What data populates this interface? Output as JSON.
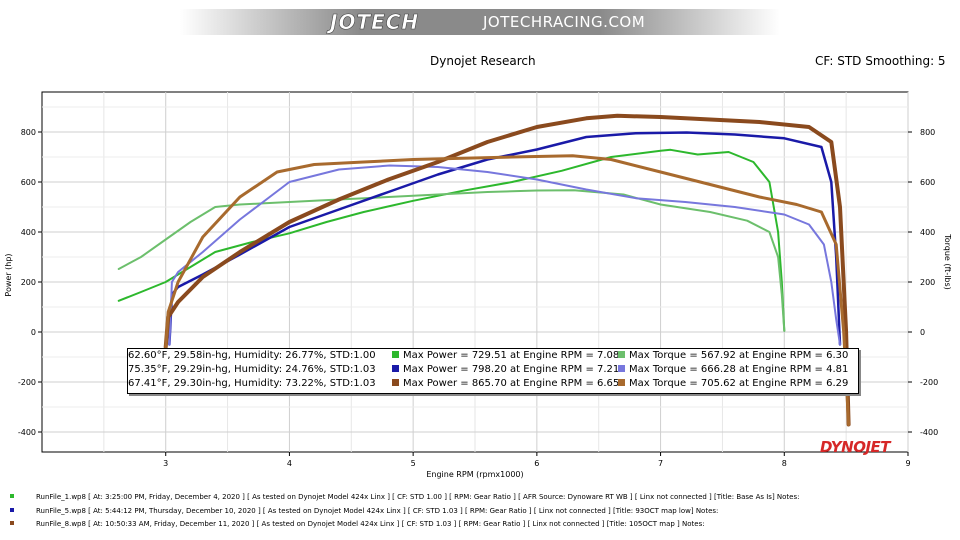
{
  "banner": {
    "logo": "JOTECH",
    "site": "JOTECHRACING.COM"
  },
  "header": {
    "title": "Dynojet Research",
    "cf_label": "CF: STD Smoothing: 5"
  },
  "brand": "DYNOJET",
  "colors": {
    "run1_power": "#2db82d",
    "run1_torque": "#6cbf6c",
    "run5_power": "#1a1aa8",
    "run5_torque": "#7777dd",
    "run8_power": "#8a4a1e",
    "run8_torque": "#a86a2e"
  },
  "chart_data": {
    "type": "line",
    "title": "Dynojet Research",
    "xlabel": "Engine RPM (rpmx1000)",
    "ylabel": "Power (hp)",
    "y2label": "Torque (ft-lbs)",
    "xlim": [
      2.0,
      9.0
    ],
    "ylim": [
      -480,
      960
    ],
    "xticks": [
      "3",
      "4",
      "5",
      "6",
      "7",
      "8",
      "9"
    ],
    "yticks": [
      "800",
      "600",
      "400",
      "200",
      "0",
      "-200",
      "-400"
    ],
    "y2ticks": [
      "800",
      "600",
      "400",
      "200",
      "0",
      "-200",
      "-400"
    ],
    "grid": true,
    "series": [
      {
        "name": "Max Power = 729.51 at Engine RPM = 7.08",
        "color": "#2db82d",
        "width": 2,
        "x": [
          2.62,
          2.8,
          3.0,
          3.2,
          3.4,
          3.7,
          4.0,
          4.3,
          4.6,
          5.0,
          5.4,
          5.8,
          6.2,
          6.6,
          7.0,
          7.08,
          7.3,
          7.55,
          7.75,
          7.88,
          7.95,
          7.98,
          8.0
        ],
        "y": [
          125,
          160,
          200,
          260,
          320,
          360,
          395,
          440,
          480,
          525,
          565,
          600,
          645,
          700,
          725,
          729,
          710,
          720,
          680,
          600,
          400,
          200,
          5
        ]
      },
      {
        "name": "Max Torque = 567.92 at Engine RPM = 6.30",
        "color": "#6cbf6c",
        "width": 2,
        "x": [
          2.62,
          2.8,
          3.0,
          3.2,
          3.4,
          3.6,
          3.8,
          4.0,
          4.4,
          4.8,
          5.2,
          5.6,
          6.0,
          6.3,
          6.7,
          7.0,
          7.4,
          7.7,
          7.88,
          7.95,
          7.98,
          8.0
        ],
        "y": [
          252,
          300,
          370,
          440,
          500,
          510,
          515,
          520,
          530,
          540,
          550,
          560,
          566,
          567,
          550,
          510,
          480,
          445,
          400,
          300,
          150,
          5
        ]
      },
      {
        "name": "Max Power = 798.20 at Engine RPM = 7.21",
        "color": "#1a1aa8",
        "width": 2.5,
        "x": [
          3.03,
          3.05,
          3.1,
          3.3,
          3.6,
          4.0,
          4.4,
          4.8,
          5.2,
          5.6,
          6.0,
          6.4,
          6.8,
          7.21,
          7.6,
          8.0,
          8.3,
          8.38,
          8.42,
          8.45
        ],
        "y": [
          -50,
          150,
          180,
          230,
          310,
          420,
          490,
          560,
          630,
          690,
          730,
          780,
          795,
          798,
          790,
          775,
          740,
          600,
          300,
          -50
        ]
      },
      {
        "name": "Max Torque = 666.28 at Engine RPM = 4.81",
        "color": "#7777dd",
        "width": 2,
        "x": [
          3.03,
          3.05,
          3.1,
          3.3,
          3.6,
          4.0,
          4.4,
          4.81,
          5.2,
          5.6,
          6.0,
          6.4,
          6.8,
          7.2,
          7.6,
          8.0,
          8.2,
          8.32,
          8.38,
          8.42,
          8.45
        ],
        "y": [
          -50,
          200,
          240,
          320,
          450,
          600,
          650,
          666,
          660,
          640,
          610,
          570,
          535,
          520,
          500,
          470,
          430,
          350,
          200,
          50,
          -50
        ]
      },
      {
        "name": "Max Power = 865.70 at Engine RPM = 6.65",
        "color": "#8a4a1e",
        "width": 4,
        "x": [
          3.0,
          3.02,
          3.1,
          3.3,
          3.6,
          4.0,
          4.4,
          4.8,
          5.2,
          5.6,
          6.0,
          6.4,
          6.65,
          7.0,
          7.4,
          7.8,
          8.2,
          8.38,
          8.45,
          8.5,
          8.52
        ],
        "y": [
          -60,
          60,
          120,
          220,
          320,
          440,
          530,
          610,
          680,
          760,
          820,
          855,
          865,
          860,
          850,
          840,
          820,
          760,
          500,
          0,
          -370
        ]
      },
      {
        "name": "Max Torque = 705.62 at Engine RPM = 6.29",
        "color": "#a86a2e",
        "width": 3,
        "x": [
          3.0,
          3.02,
          3.1,
          3.3,
          3.6,
          3.9,
          4.2,
          4.6,
          5.0,
          5.4,
          5.8,
          6.29,
          6.6,
          7.0,
          7.4,
          7.8,
          8.1,
          8.3,
          8.42,
          8.48,
          8.52
        ],
        "y": [
          -60,
          80,
          200,
          380,
          540,
          640,
          670,
          680,
          690,
          695,
          700,
          705,
          690,
          640,
          590,
          540,
          510,
          480,
          350,
          0,
          -370
        ]
      }
    ],
    "legend_rows": [
      {
        "conditions": "62.60°F, 29.58in-hg, Humidity: 26.77%, STD:1.00",
        "power": "Max Power = 729.51 at Engine RPM = 7.08",
        "torque": "Max Torque = 567.92 at Engine RPM = 6.30"
      },
      {
        "conditions": "75.35°F, 29.29in-hg, Humidity: 24.76%, STD:1.03",
        "power": "Max Power = 798.20 at Engine RPM = 7.21",
        "torque": "Max Torque = 666.28 at Engine RPM = 4.81"
      },
      {
        "conditions": "67.41°F, 29.30in-hg, Humidity: 73.22%, STD:1.03",
        "power": "Max Power = 865.70 at Engine RPM = 6.65",
        "torque": "Max Torque = 705.62 at Engine RPM = 6.29"
      }
    ]
  },
  "footer": [
    "RunFile_1.wp8 [ At: 3:25:00 PM, Friday, December 4, 2020 ] [ As tested on Dynojet Model 424x Linx ] [ CF: STD 1.00 ] [ RPM: Gear Ratio ] [ AFR Source: Dynoware RT WB ] [ Linx not connected ] [Title: Base As Is]  Notes:",
    "RunFile_5.wp8 [ At: 5:44:12 PM, Thursday, December 10, 2020 ] [ As tested on Dynojet Model 424x Linx ] [ CF: STD 1.03 ] [ RPM: Gear Ratio ] [ Linx not connected ] [Title: 93OCT map low]  Notes:",
    "RunFile_8.wp8 [ At: 10:50:33 AM, Friday, December 11, 2020 ] [ As tested on Dynojet Model 424x Linx ] [ CF: STD 1.03 ] [ RPM: Gear Ratio ] [ Linx not connected ] [Title: 105OCT map ]  Notes:"
  ]
}
